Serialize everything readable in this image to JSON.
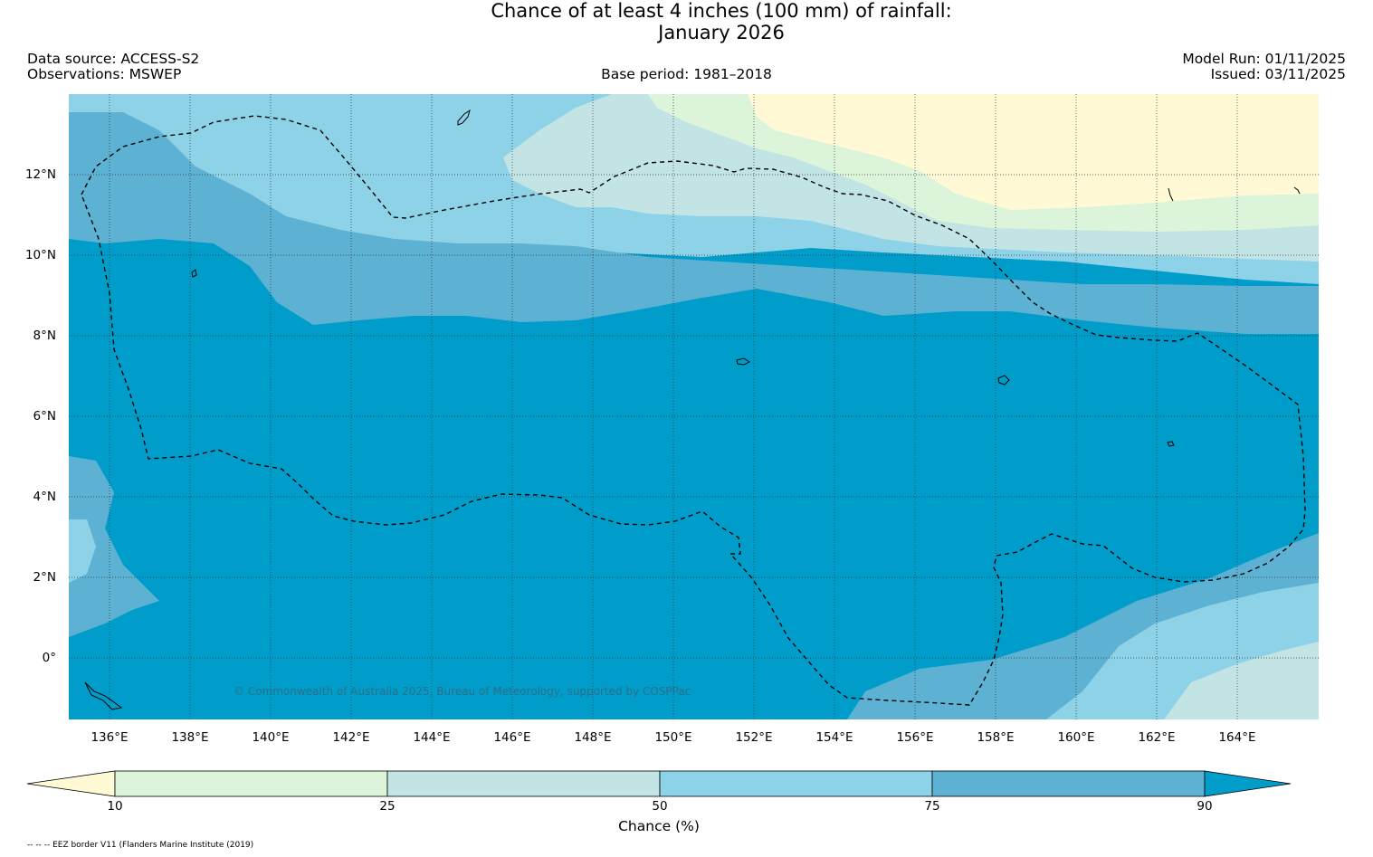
{
  "title": {
    "line1": "Chance of at least 4 inches (100  mm) of rainfall:",
    "line2": "January 2026"
  },
  "meta": {
    "data_source": "Data source: ACCESS-S2",
    "observations": "Observations: MSWEP",
    "base_period": "Base period: 1981–2018",
    "model_run": "Model Run: 01/11/2025",
    "issued": "Issued: 03/11/2025"
  },
  "map": {
    "lon_range": [
      135,
      166
    ],
    "lat_range": [
      -1.5,
      14
    ],
    "x_ticks": [
      "136°E",
      "138°E",
      "140°E",
      "142°E",
      "144°E",
      "146°E",
      "148°E",
      "150°E",
      "152°E",
      "154°E",
      "156°E",
      "158°E",
      "160°E",
      "162°E",
      "164°E"
    ],
    "y_ticks": [
      "12°N",
      "10°N",
      "8°N",
      "6°N",
      "4°N",
      "2°N",
      "0°"
    ],
    "copyright": "© Commonwealth of Australia 2025, Bureau of Meteorology, supported by COSPPac"
  },
  "colorbar": {
    "label": "Chance (%)",
    "ticks": [
      "10",
      "25",
      "50",
      "75",
      "90"
    ],
    "colors": {
      "below_10": "#fffad5",
      "c10_25": "#dcf4da",
      "c25_50": "#c2e4e5",
      "c50_75": "#8ed2e8",
      "c75_90": "#5db1d3",
      "above_90": "#009dca"
    }
  },
  "footnote": "-- -- -- EEZ border V11 (Flanders Marine Institute (2019)"
}
